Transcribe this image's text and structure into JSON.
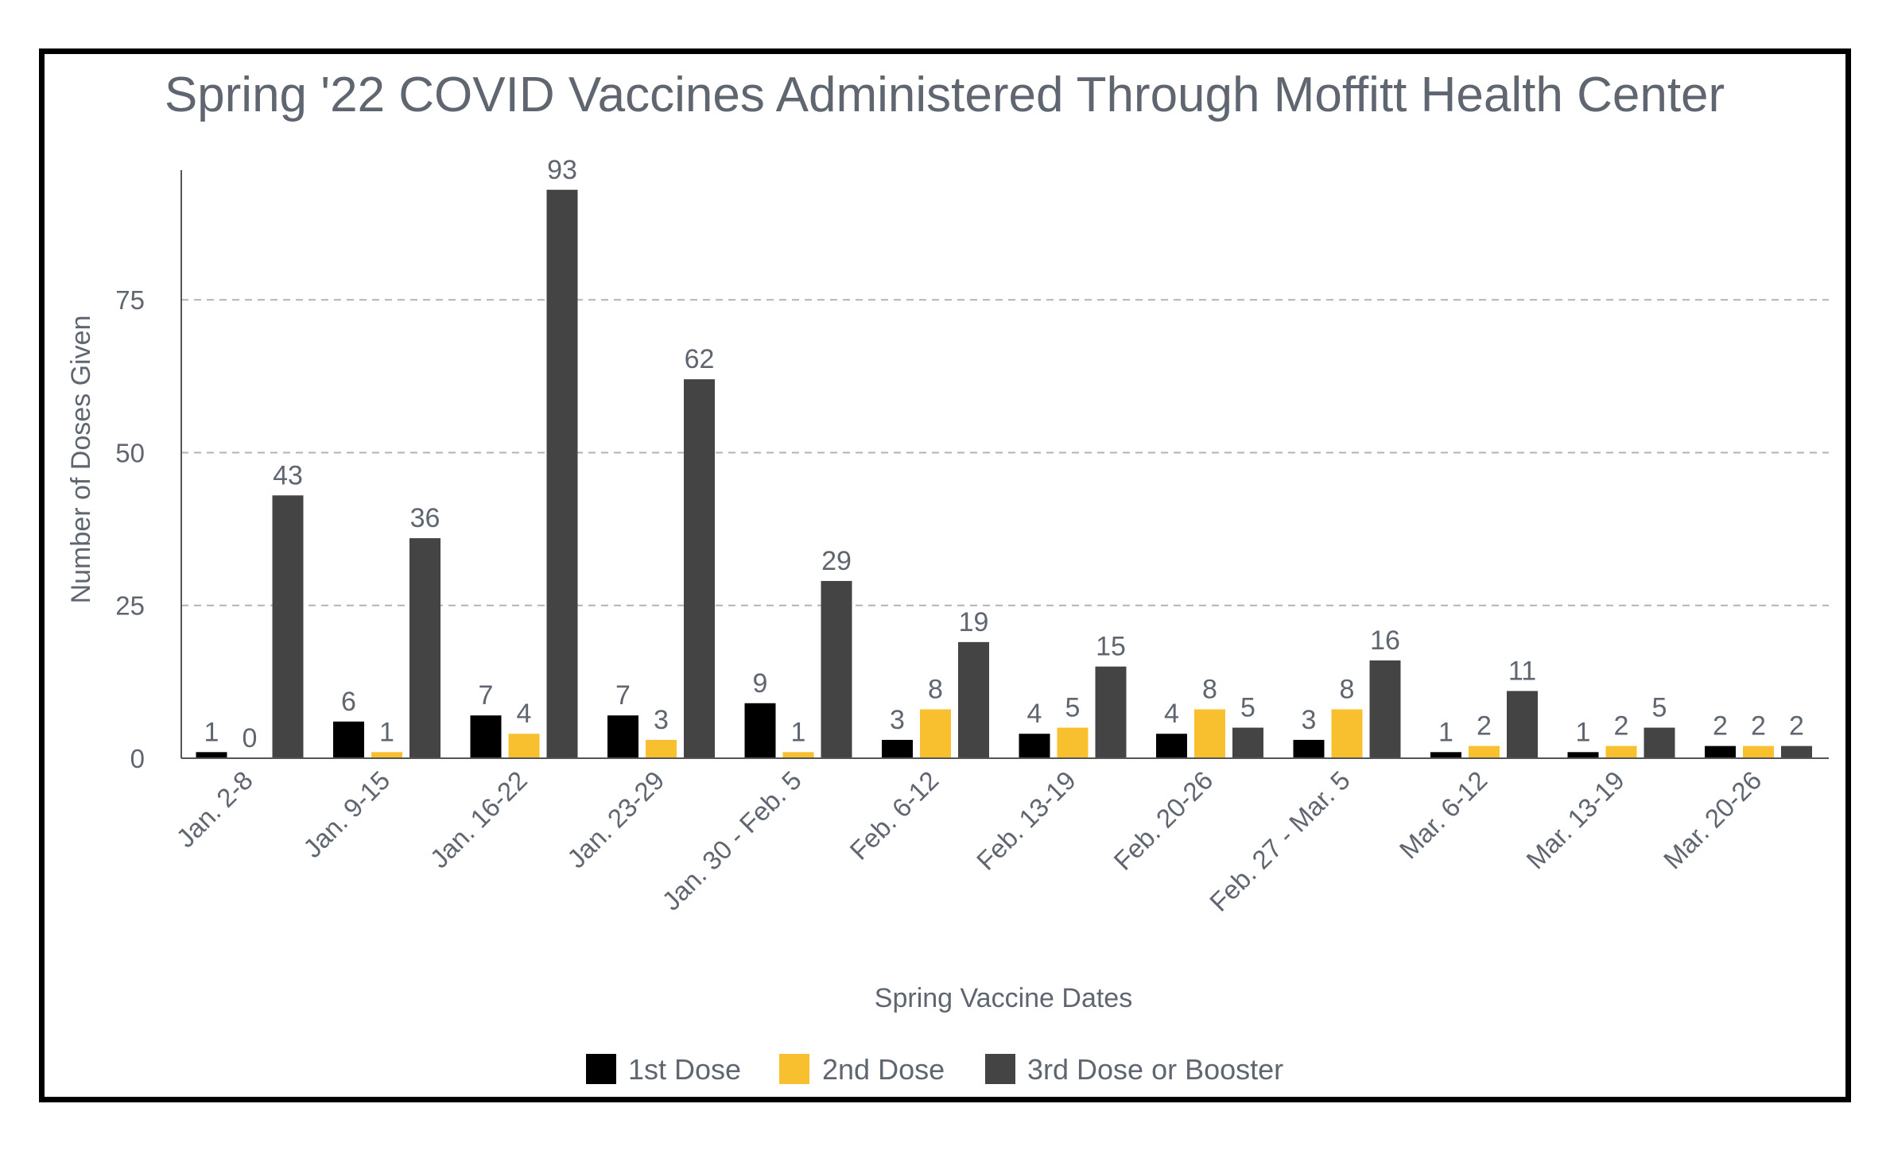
{
  "chart_data": {
    "type": "bar",
    "title": "Spring '22 COVID Vaccines Administered Through Moffitt Health Center",
    "xlabel": "Spring Vaccine Dates",
    "ylabel": "Number of Doses Given",
    "ylim": [
      0,
      97
    ],
    "yticks": [
      0,
      25,
      50,
      75
    ],
    "grid": true,
    "legend_position": "bottom",
    "categories": [
      "Jan. 2-8",
      "Jan. 9-15",
      "Jan. 16-22",
      "Jan. 23-29",
      "Jan. 30 - Feb. 5",
      "Feb. 6-12",
      "Feb. 13-19",
      "Feb. 20-26",
      "Feb. 27 - Mar. 5",
      "Mar. 6-12",
      "Mar. 13-19",
      "Mar. 20-26"
    ],
    "series": [
      {
        "name": "1st Dose",
        "color": "#000000",
        "values": [
          1,
          6,
          7,
          7,
          9,
          3,
          4,
          4,
          3,
          1,
          1,
          2
        ]
      },
      {
        "name": "2nd Dose",
        "color": "#f8c02e",
        "values": [
          0,
          1,
          4,
          3,
          1,
          8,
          5,
          8,
          8,
          2,
          2,
          2
        ]
      },
      {
        "name": "3rd Dose or Booster",
        "color": "#444444",
        "values": [
          43,
          36,
          93,
          62,
          29,
          19,
          15,
          5,
          16,
          11,
          5,
          2
        ]
      }
    ]
  }
}
